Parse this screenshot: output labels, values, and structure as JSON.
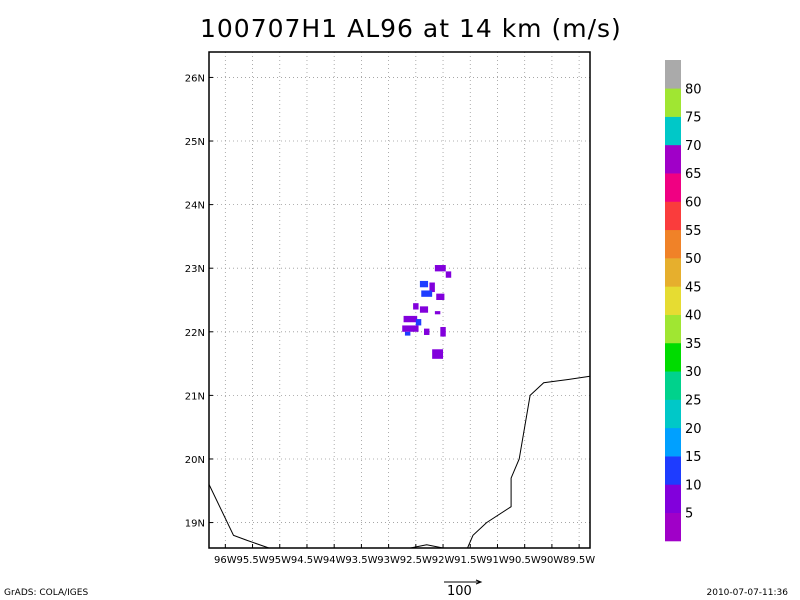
{
  "title": "100707H1 AL96 at 14 km (m/s)",
  "footer": {
    "left": "GrADS: COLA/IGES",
    "right": "2010-07-07-11:36"
  },
  "reference_vector": {
    "label": "100"
  },
  "map": {
    "lon_range": [
      -96.3,
      -89.3
    ],
    "lat_range": [
      18.6,
      26.4
    ],
    "lat_ticks": [
      {
        "value": 19,
        "label": "19N"
      },
      {
        "value": 20,
        "label": "20N"
      },
      {
        "value": 21,
        "label": "21N"
      },
      {
        "value": 22,
        "label": "22N"
      },
      {
        "value": 23,
        "label": "23N"
      },
      {
        "value": 24,
        "label": "24N"
      },
      {
        "value": 25,
        "label": "25N"
      },
      {
        "value": 26,
        "label": "26N"
      }
    ],
    "lon_ticks": [
      {
        "value": -96,
        "label": "96W"
      },
      {
        "value": -95.5,
        "label": "95.5W"
      },
      {
        "value": -95,
        "label": "95W"
      },
      {
        "value": -94.5,
        "label": "94.5W"
      },
      {
        "value": -94,
        "label": "94W"
      },
      {
        "value": -93.5,
        "label": "93.5W"
      },
      {
        "value": -93,
        "label": "93W"
      },
      {
        "value": -92.5,
        "label": "92.5W"
      },
      {
        "value": -92,
        "label": "92W"
      },
      {
        "value": -91.5,
        "label": "91.5W"
      },
      {
        "value": -91,
        "label": "91W"
      },
      {
        "value": -90.5,
        "label": "90.5W"
      },
      {
        "value": -90,
        "label": "90W"
      },
      {
        "value": -89.5,
        "label": "89.5W"
      }
    ],
    "gridlines": true,
    "coastlines": [
      [
        [
          -96.3,
          19.6
        ],
        [
          -95.85,
          18.8
        ],
        [
          -95.6,
          18.72
        ],
        [
          -95.2,
          18.6
        ]
      ],
      [
        [
          -92.6,
          18.6
        ],
        [
          -92.3,
          18.65
        ],
        [
          -92.0,
          18.6
        ]
      ],
      [
        [
          -91.55,
          18.6
        ],
        [
          -91.45,
          18.8
        ],
        [
          -91.2,
          19.0
        ],
        [
          -90.75,
          19.25
        ],
        [
          -90.75,
          19.7
        ],
        [
          -90.6,
          20.0
        ],
        [
          -90.4,
          21.0
        ],
        [
          -90.15,
          21.2
        ],
        [
          -89.7,
          21.25
        ],
        [
          -89.3,
          21.3
        ]
      ]
    ],
    "wind_field": [
      {
        "lon": -92.05,
        "lat": 23.0,
        "w": 0.2,
        "h": 0.1,
        "speed": 5
      },
      {
        "lon": -91.9,
        "lat": 22.9,
        "w": 0.1,
        "h": 0.1,
        "speed": 5
      },
      {
        "lon": -92.35,
        "lat": 22.75,
        "w": 0.15,
        "h": 0.1,
        "speed": 12
      },
      {
        "lon": -92.2,
        "lat": 22.7,
        "w": 0.1,
        "h": 0.15,
        "speed": 5
      },
      {
        "lon": -92.3,
        "lat": 22.6,
        "w": 0.2,
        "h": 0.1,
        "speed": 12
      },
      {
        "lon": -92.05,
        "lat": 22.55,
        "w": 0.15,
        "h": 0.1,
        "speed": 5
      },
      {
        "lon": -92.5,
        "lat": 22.4,
        "w": 0.1,
        "h": 0.1,
        "speed": 5
      },
      {
        "lon": -92.35,
        "lat": 22.35,
        "w": 0.15,
        "h": 0.1,
        "speed": 5
      },
      {
        "lon": -92.1,
        "lat": 22.3,
        "w": 0.1,
        "h": 0.05,
        "speed": 5
      },
      {
        "lon": -92.6,
        "lat": 22.2,
        "w": 0.25,
        "h": 0.1,
        "speed": 5
      },
      {
        "lon": -92.45,
        "lat": 22.15,
        "w": 0.1,
        "h": 0.1,
        "speed": 12
      },
      {
        "lon": -92.6,
        "lat": 22.05,
        "w": 0.3,
        "h": 0.1,
        "speed": 5
      },
      {
        "lon": -92.65,
        "lat": 21.97,
        "w": 0.1,
        "h": 0.06,
        "speed": 12
      },
      {
        "lon": -92.3,
        "lat": 22.0,
        "w": 0.1,
        "h": 0.1,
        "speed": 5
      },
      {
        "lon": -92.0,
        "lat": 22.0,
        "w": 0.1,
        "h": 0.15,
        "speed": 5
      },
      {
        "lon": -92.1,
        "lat": 21.65,
        "w": 0.2,
        "h": 0.15,
        "speed": 5
      }
    ]
  },
  "colorbar": {
    "colors": [
      "#a000c8",
      "#8200dc",
      "#1e3cff",
      "#00a0ff",
      "#00c8c8",
      "#00d28c",
      "#00dc00",
      "#a0e632",
      "#e6dc32",
      "#e6af2d",
      "#f08228",
      "#fa3c3c",
      "#f00082",
      "#a000c8",
      "#00c8c8",
      "#a0e632",
      "#aaaaaa"
    ],
    "labels": [
      "5",
      "10",
      "15",
      "20",
      "25",
      "30",
      "35",
      "40",
      "45",
      "50",
      "55",
      "60",
      "65",
      "70",
      "75",
      "80"
    ]
  }
}
